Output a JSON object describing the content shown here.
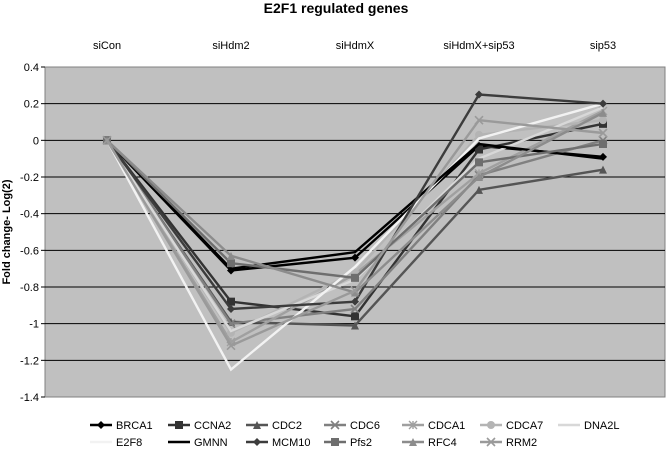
{
  "chart_data": {
    "type": "line",
    "title": "E2F1 regulated genes",
    "xlabel": "",
    "ylabel": "Fold change- Log(2)",
    "categories": [
      "siCon",
      "siHdm2",
      "siHdmX",
      "siHdmX+sip53",
      "sip53"
    ],
    "ylim": [
      -1.4,
      0.4
    ],
    "yticks": [
      0.4,
      0.2,
      0,
      -0.2,
      -0.4,
      -0.6,
      -0.8,
      -1,
      -1.2,
      -1.4
    ],
    "grid": true,
    "legend_position": "bottom",
    "series": [
      {
        "name": "BRCA1",
        "values": [
          0,
          -0.71,
          -0.64,
          -0.03,
          -0.09
        ],
        "color": "#000000",
        "marker": "diamond"
      },
      {
        "name": "CCNA2",
        "values": [
          0,
          -0.88,
          -0.96,
          -0.05,
          0.09
        ],
        "color": "#333333",
        "marker": "square"
      },
      {
        "name": "CDC2",
        "values": [
          0,
          -0.99,
          -1.01,
          -0.27,
          -0.16
        ],
        "color": "#555555",
        "marker": "triangle"
      },
      {
        "name": "CDC6",
        "values": [
          0,
          -1.0,
          -0.92,
          -0.19,
          0.0
        ],
        "color": "#808080",
        "marker": "x"
      },
      {
        "name": "CDCA1",
        "values": [
          0,
          -1.1,
          -0.73,
          -0.18,
          0.16
        ],
        "color": "#a0a0a0",
        "marker": "star"
      },
      {
        "name": "CDCA7",
        "values": [
          0,
          -1.05,
          -0.72,
          0.03,
          0.11
        ],
        "color": "#b4b4b4",
        "marker": "circle"
      },
      {
        "name": "DNA2L",
        "values": [
          0,
          -1.04,
          -0.76,
          -0.1,
          0.18
        ],
        "color": "#d8d8d8",
        "marker": "none"
      },
      {
        "name": "E2F8",
        "values": [
          0,
          -1.25,
          -0.69,
          0.01,
          0.2
        ],
        "color": "#f2f2f2",
        "marker": "none"
      },
      {
        "name": "GMNN",
        "values": [
          0,
          -0.7,
          -0.61,
          -0.02,
          -0.1
        ],
        "color": "#000000",
        "marker": "none"
      },
      {
        "name": "MCM10",
        "values": [
          0,
          -0.92,
          -0.88,
          0.25,
          0.2
        ],
        "color": "#3c3c3c",
        "marker": "diamond"
      },
      {
        "name": "Pfs2",
        "values": [
          0,
          -0.67,
          -0.75,
          -0.12,
          -0.02
        ],
        "color": "#6e6e6e",
        "marker": "square"
      },
      {
        "name": "RFC4",
        "values": [
          0,
          -0.63,
          -0.83,
          -0.2,
          0.15
        ],
        "color": "#8c8c8c",
        "marker": "triangle"
      },
      {
        "name": "RRM2",
        "values": [
          0,
          -1.12,
          -0.82,
          0.11,
          0.04
        ],
        "color": "#9a9a9a",
        "marker": "x"
      }
    ]
  }
}
